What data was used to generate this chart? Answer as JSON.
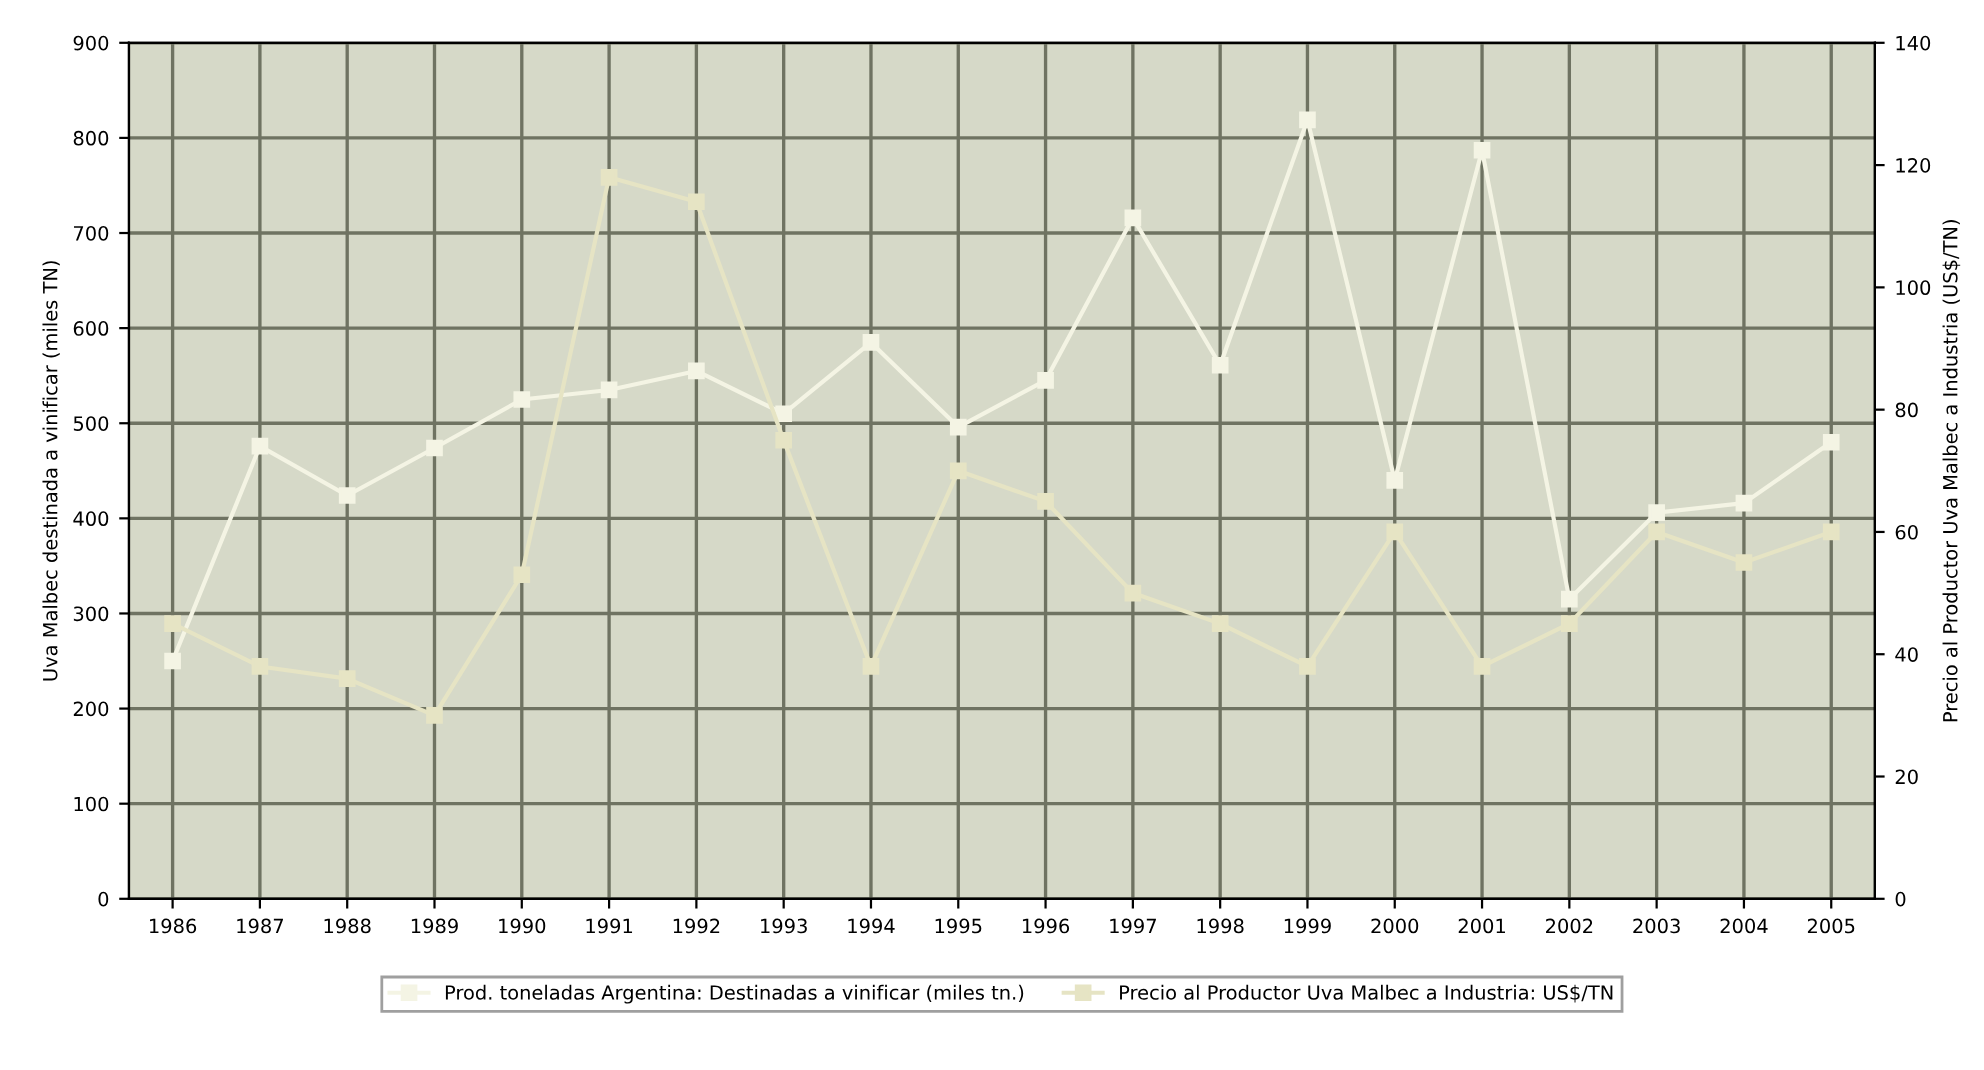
{
  "chart_data": {
    "type": "line",
    "ylabel": "Uva Malbec destinada a vinificar (miles TN)",
    "y2label": "Precio al Productor Uva Malbec a Industria (US$/TN)",
    "categories": [
      "1986",
      "1987",
      "1988",
      "1989",
      "1990",
      "1991",
      "1992",
      "1993",
      "1994",
      "1995",
      "1996",
      "1997",
      "1998",
      "1999",
      "2000",
      "2001",
      "2002",
      "2003",
      "2004",
      "2005"
    ],
    "series": [
      {
        "name": "Prod. toneladas Argentina: Destinadas a vinificar (miles tn.)",
        "color": "#f4f4e4",
        "values": [
          250,
          476,
          424,
          474,
          525,
          535,
          555,
          510,
          585,
          496,
          545,
          716,
          561,
          819,
          440,
          787,
          315,
          406,
          416,
          480
        ]
      },
      {
        "name": "Precio al Productor Uva Malbec a Industria: US$/TN",
        "color": "#e6e4c4",
        "axis": "y2",
        "values": [
          45,
          38,
          36,
          30,
          53,
          118,
          114,
          75,
          38,
          70,
          65,
          50,
          45,
          38,
          60,
          38,
          45,
          60,
          55,
          60
        ]
      }
    ],
    "ylim": [
      0,
      900
    ],
    "yticks": [
      0,
      100,
      200,
      300,
      400,
      500,
      600,
      700,
      800,
      900
    ],
    "y2lim": [
      0,
      140
    ],
    "y2ticks": [
      0,
      20,
      40,
      60,
      80,
      100,
      120,
      140
    ],
    "grid": true,
    "legend": "bottom",
    "marker": "square",
    "line_style": "solid"
  }
}
